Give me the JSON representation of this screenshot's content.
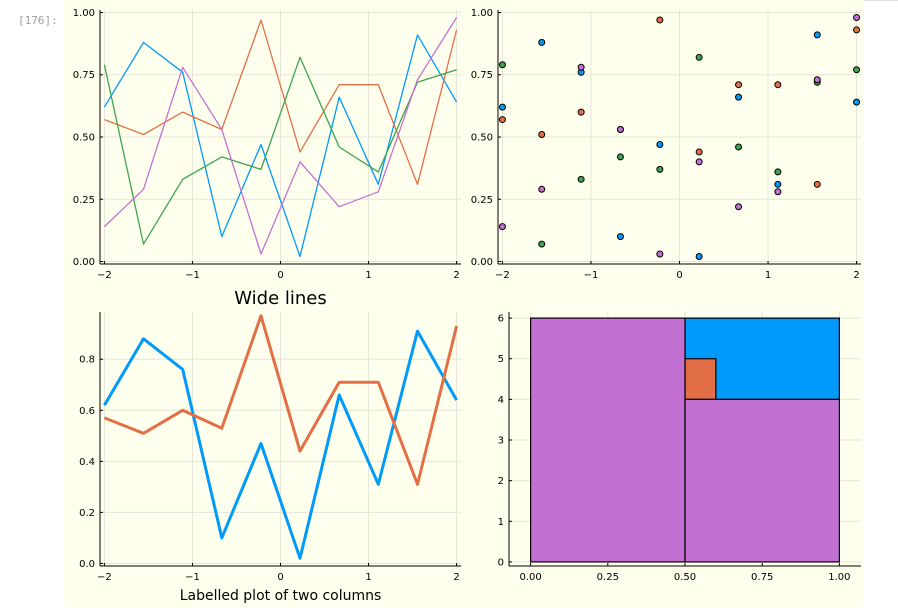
{
  "cell": {
    "prompt": "[176]:"
  },
  "colors": {
    "background": "#FFFFEE",
    "series": [
      "#009AFA",
      "#E26F46",
      "#3DA44D",
      "#C271D2"
    ],
    "grid": "#E6E6D8"
  },
  "chart_data": [
    {
      "id": "top-left",
      "type": "line",
      "title": "",
      "xlabel": "",
      "ylabel": "",
      "xlim": [
        -2.05,
        2.05
      ],
      "ylim": [
        -0.01,
        1.01
      ],
      "xticks": [
        -2,
        -1,
        0,
        1,
        2
      ],
      "xtick_labels": [
        "−2",
        "−1",
        "0",
        "1",
        "2"
      ],
      "yticks": [
        0,
        0.25,
        0.5,
        0.75,
        1.0
      ],
      "ytick_labels": [
        "0.00",
        "0.25",
        "0.50",
        "0.75",
        "1.00"
      ],
      "grid": true,
      "legend": "none",
      "x": [
        -2.0,
        -1.556,
        -1.111,
        -0.667,
        -0.222,
        0.222,
        0.667,
        1.111,
        1.556,
        2.0
      ],
      "series": [
        {
          "values": [
            0.62,
            0.88,
            0.76,
            0.1,
            0.47,
            0.02,
            0.66,
            0.31,
            0.91,
            0.64
          ]
        },
        {
          "values": [
            0.57,
            0.51,
            0.6,
            0.53,
            0.97,
            0.44,
            0.71,
            0.71,
            0.31,
            0.93
          ]
        },
        {
          "values": [
            0.79,
            0.07,
            0.33,
            0.42,
            0.37,
            0.82,
            0.46,
            0.36,
            0.72,
            0.77
          ]
        },
        {
          "values": [
            0.14,
            0.29,
            0.78,
            0.53,
            0.03,
            0.4,
            0.22,
            0.28,
            0.73,
            0.98
          ]
        }
      ]
    },
    {
      "id": "top-right",
      "type": "scatter",
      "title": "",
      "xlabel": "",
      "ylabel": "",
      "xlim": [
        -2.05,
        2.05
      ],
      "ylim": [
        -0.01,
        1.01
      ],
      "xticks": [
        -2,
        -1,
        0,
        1,
        2
      ],
      "xtick_labels": [
        "−2",
        "−1",
        "0",
        "1",
        "2"
      ],
      "yticks": [
        0,
        0.25,
        0.5,
        0.75,
        1.0
      ],
      "ytick_labels": [
        "0.00",
        "0.25",
        "0.50",
        "0.75",
        "1.00"
      ],
      "grid": true,
      "legend": "none",
      "x": [
        -2.0,
        -1.556,
        -1.111,
        -0.667,
        -0.222,
        0.222,
        0.667,
        1.111,
        1.556,
        2.0
      ],
      "series": [
        {
          "values": [
            0.62,
            0.88,
            0.76,
            0.1,
            0.47,
            0.02,
            0.66,
            0.31,
            0.91,
            0.64
          ]
        },
        {
          "values": [
            0.57,
            0.51,
            0.6,
            0.53,
            0.97,
            0.44,
            0.71,
            0.71,
            0.31,
            0.93
          ]
        },
        {
          "values": [
            0.79,
            0.07,
            0.33,
            0.42,
            0.37,
            0.82,
            0.46,
            0.36,
            0.72,
            0.77
          ]
        },
        {
          "values": [
            0.14,
            0.29,
            0.78,
            0.53,
            0.03,
            0.4,
            0.22,
            0.28,
            0.73,
            0.98
          ]
        }
      ]
    },
    {
      "id": "bottom-left",
      "type": "line",
      "title": "Wide lines",
      "xlabel": "Labelled plot of two columns",
      "ylabel": "",
      "xlim": [
        -2.05,
        2.05
      ],
      "ylim": [
        -0.01,
        0.985
      ],
      "xticks": [
        -2,
        -1,
        0,
        1,
        2
      ],
      "xtick_labels": [
        "−2",
        "−1",
        "0",
        "1",
        "2"
      ],
      "yticks": [
        0,
        0.2,
        0.4,
        0.6,
        0.8
      ],
      "ytick_labels": [
        "0.0",
        "0.2",
        "0.4",
        "0.6",
        "0.8"
      ],
      "grid": true,
      "legend": "none",
      "x": [
        -2.0,
        -1.556,
        -1.111,
        -0.667,
        -0.222,
        0.222,
        0.667,
        1.111,
        1.556,
        2.0
      ],
      "series": [
        {
          "values": [
            0.62,
            0.88,
            0.76,
            0.1,
            0.47,
            0.02,
            0.66,
            0.31,
            0.91,
            0.64
          ]
        },
        {
          "values": [
            0.57,
            0.51,
            0.6,
            0.53,
            0.97,
            0.44,
            0.71,
            0.71,
            0.31,
            0.93
          ]
        }
      ]
    },
    {
      "id": "bottom-right",
      "type": "bar",
      "title": "",
      "xlabel": "",
      "ylabel": "",
      "xlim": [
        -0.07,
        1.07
      ],
      "ylim": [
        -0.1,
        6.15
      ],
      "xticks": [
        0,
        0.25,
        0.5,
        0.75,
        1.0
      ],
      "xtick_labels": [
        "0.00",
        "0.25",
        "0.50",
        "0.75",
        "1.00"
      ],
      "yticks": [
        0,
        1,
        2,
        3,
        4,
        5,
        6
      ],
      "ytick_labels": [
        "0",
        "1",
        "2",
        "3",
        "4",
        "5",
        "6"
      ],
      "grid": true,
      "legend": "none",
      "rects": [
        {
          "x0": 0.5,
          "x1": 1.0,
          "y0": 4,
          "y1": 6,
          "color": "#009AFA"
        },
        {
          "x0": 0.5,
          "x1": 0.6,
          "y0": 4,
          "y1": 5,
          "color": "#E26F46"
        },
        {
          "x0": 0.0,
          "x1": 0.5,
          "y0": 0,
          "y1": 6,
          "color": "#C271D2"
        },
        {
          "x0": 0.5,
          "x1": 1.0,
          "y0": 0,
          "y1": 4,
          "color": "#C271D2"
        }
      ]
    }
  ]
}
